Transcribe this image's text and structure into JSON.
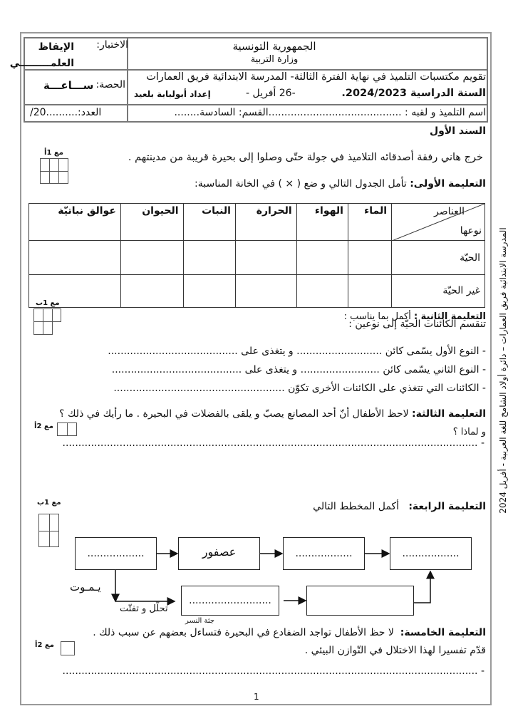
{
  "header": {
    "republic": "الجمهورية التونسية",
    "ministry": "وزارة التربية",
    "eval_line": "تقويم مكتسبات التلميذ في نهاية الفترة الثالثة- المدرسة الابتدائية فريق العمارات",
    "school_year": "السنة الدراسية 2024/2023.",
    "date": "-26 أفريل -",
    "author": "إعداد أبولبابة بلعيد",
    "test_label": "الاختبار:",
    "test_value": "الإيقاظ العلمـــــــــي",
    "session_label": "الحصة:",
    "session_value": "ســـاعـــة",
    "student_line": "اسم التلميذ و لقبه : ..........................................القسم: السادسة........",
    "score": "العدد:..........20/"
  },
  "side_text": "المدرسة الابتدائية فريق العمارات – دائرة أولاد الشامخ للغة العربية - أفريل 2024",
  "section_title": "السند الأول",
  "intro": "خرج هاني رفقة أصدقائه التلاميذ في جولة حتّى وصلوا إلى بحيرة قريبة من مدينتهم .",
  "q1": {
    "label": "التعليمة الأولى:",
    "text": "تأمل الجدول التالي و ضع ( × ) في الخانة المناسبة:",
    "score_label": "مع 1أ",
    "corner_top": "العناصر",
    "corner_bottom": "نوعها",
    "columns": [
      "الماء",
      "الهواء",
      "الحرارة",
      "النبات",
      "الحيوان",
      "عوالق نباتيّة"
    ],
    "rows": [
      "الحيّة",
      "غير الحيّة"
    ]
  },
  "q2": {
    "label": "التعليمة الثانية :",
    "text": "أكمل بما يناسب :",
    "score_label": "مع 1ب",
    "intro": "تنقسم الكائنات الحيّة إلى نوعين :",
    "items": [
      "-   النوع الأول يسّمى كائن ........................... و يتغذى على .........................................",
      "-    النوع الثاني يسّمى كائن ......................... و يتغذى على .........................................",
      "-   الكائنات التي تتغذي على الكائنات الأخرى تكوّن ......................................................"
    ]
  },
  "q3": {
    "label": "التعليمة الثالثة:",
    "text": "لاحظ الأطفال أنّ أحد المصانع يصبّ و يلقى بالفضلات في البحيرة .  ما رأيك في ذلك ؟",
    "text2": "و لماذا ؟",
    "score_label": "مع 2أ",
    "answer_line": "-   ..................................................................................................................................."
  },
  "q4": {
    "label": "التعليمة الرابعة:",
    "text": "أكمل المخطط التالي",
    "score_label": "مع 1ب",
    "boxes": [
      "..................",
      "عصفور",
      "..................",
      "..................",
      "..........................",
      ""
    ],
    "die_label": "يـمـوت",
    "decompose_label": "تحلّل و تفتّت"
  },
  "q5": {
    "label": "التعليمة الخامسة:",
    "text": "لا حظ الأطفال تواجد الضفادع في البحيرة فتساءل بعضهم عن سبب ذلك .",
    "annotation": "جثة النسر",
    "text2": "قدّم تفسيرا لهذا الاختلال في التّوازن البيئي .",
    "score_label": "مع 2أ",
    "answer_line": "-   ..................................................................................................................................."
  },
  "page_number": "1"
}
